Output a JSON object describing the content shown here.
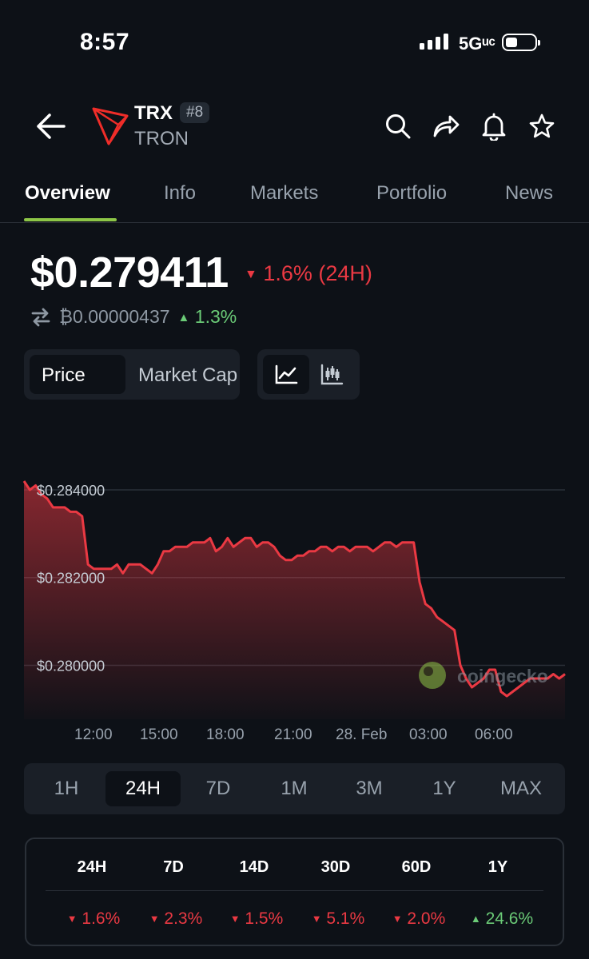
{
  "status": {
    "time": "8:57",
    "network": "5Gᵘᶜ"
  },
  "header": {
    "symbol": "TRX",
    "rank": "#8",
    "name": "TRON"
  },
  "tabs": [
    "Overview",
    "Info",
    "Markets",
    "Portfolio",
    "News"
  ],
  "price": {
    "value": "$0.279411",
    "change": "1.6% (24H)",
    "btc_value": "₿0.00000437",
    "btc_change": "1.3%"
  },
  "toggles": {
    "price": "Price",
    "market_cap": "Market Cap"
  },
  "colors": {
    "accent": "#8dc647",
    "negative": "#ea3943",
    "positive": "#6bcb77",
    "background": "#0d1117"
  },
  "chart_data": {
    "type": "area",
    "y_tick_labels": [
      "$0.284000",
      "$0.282000",
      "$0.280000"
    ],
    "x_tick_labels": [
      "12:00",
      "15:00",
      "18:00",
      "21:00",
      "28. Feb",
      "03:00",
      "06:00"
    ],
    "ylim": [
      0.2795,
      0.2846
    ],
    "watermark": "coingecko",
    "series": [
      {
        "values": [
          0.2842,
          0.284,
          0.2841,
          0.2839,
          0.2838,
          0.2836,
          0.2836,
          0.2836,
          0.2835,
          0.2835,
          0.2834,
          0.2823,
          0.2822,
          0.2822,
          0.2822,
          0.2822,
          0.2823,
          0.2821,
          0.2823,
          0.2823,
          0.2823,
          0.2822,
          0.2821,
          0.2823,
          0.2826,
          0.2826,
          0.2827,
          0.2827,
          0.2827,
          0.2828,
          0.2828,
          0.2828,
          0.2829,
          0.2826,
          0.2827,
          0.2829,
          0.2827,
          0.2828,
          0.2829,
          0.2829,
          0.2827,
          0.2828,
          0.2828,
          0.2827,
          0.2825,
          0.2824,
          0.2824,
          0.2825,
          0.2825,
          0.2826,
          0.2826,
          0.2827,
          0.2827,
          0.2826,
          0.2827,
          0.2827,
          0.2826,
          0.2827,
          0.2827,
          0.2827,
          0.2826,
          0.2827,
          0.2828,
          0.2828,
          0.2827,
          0.2828,
          0.2828,
          0.2828,
          0.2819,
          0.2814,
          0.2813,
          0.2811,
          0.281,
          0.2809,
          0.2808,
          0.28,
          0.2797,
          0.2795,
          0.2796,
          0.2797,
          0.2799,
          0.2799,
          0.2794,
          0.2793,
          0.2794,
          0.2795,
          0.2796,
          0.2797,
          0.2797,
          0.2797,
          0.2797,
          0.2798,
          0.2797,
          0.2798
        ]
      }
    ]
  },
  "ranges": [
    "1H",
    "24H",
    "7D",
    "1M",
    "3M",
    "1Y",
    "MAX"
  ],
  "performance": {
    "headers": [
      "24H",
      "7D",
      "14D",
      "30D",
      "60D",
      "1Y"
    ],
    "values": [
      {
        "value": "1.6%",
        "dir": "down"
      },
      {
        "value": "2.3%",
        "dir": "down"
      },
      {
        "value": "1.5%",
        "dir": "down"
      },
      {
        "value": "5.1%",
        "dir": "down"
      },
      {
        "value": "2.0%",
        "dir": "down"
      },
      {
        "value": "24.6%",
        "dir": "up"
      }
    ]
  }
}
